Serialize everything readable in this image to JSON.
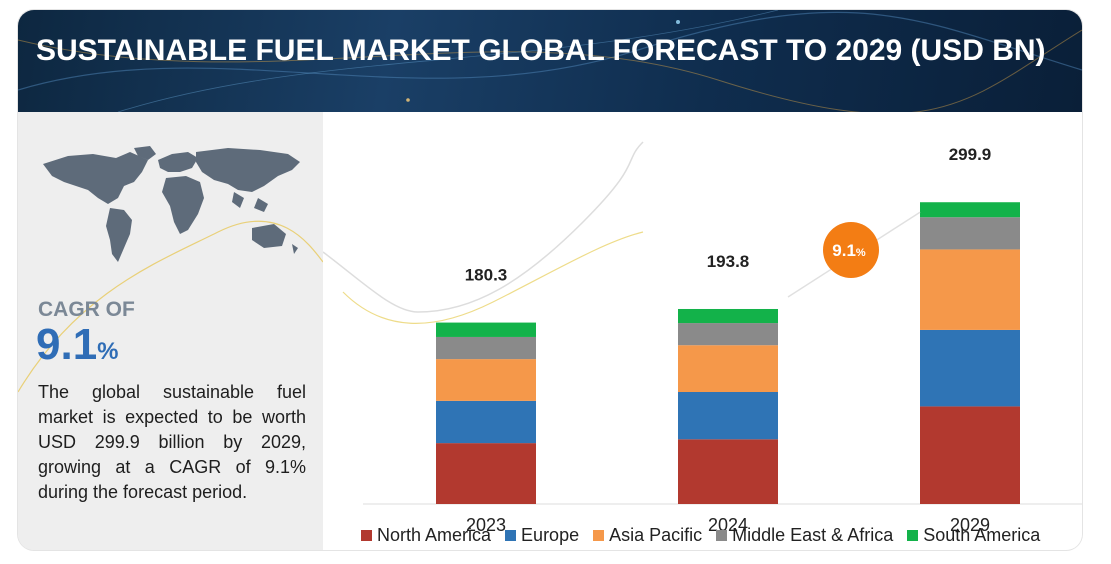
{
  "header": {
    "title": "SUSTAINABLE FUEL MARKET GLOBAL FORECAST TO 2029 (USD BN)"
  },
  "left_panel": {
    "cagr_label": "CAGR OF",
    "cagr_value": "9.1",
    "cagr_unit": "%",
    "description": "The global sustainable fuel market is expected to be worth USD 299.9 billion by 2029, growing at a CAGR of 9.1% during the forecast period."
  },
  "chart_data": {
    "type": "bar",
    "stacked": true,
    "categories": [
      "2023",
      "2024",
      "2029"
    ],
    "totals": [
      180.3,
      193.8,
      299.9
    ],
    "total_labels": [
      "180.3",
      "193.8",
      "299.9"
    ],
    "series": [
      {
        "name": "North America",
        "color": "#b2392f",
        "values": [
          60.5,
          64.3,
          97.0
        ]
      },
      {
        "name": "Europe",
        "color": "#2f74b5",
        "values": [
          42.0,
          47.0,
          76.0
        ]
      },
      {
        "name": "Asia Pacific",
        "color": "#f5984a",
        "values": [
          41.5,
          46.5,
          80.0
        ]
      },
      {
        "name": "Middle East & Africa",
        "color": "#8a8a8a",
        "values": [
          22.0,
          22.0,
          32.0
        ]
      },
      {
        "name": "South America",
        "color": "#13b24a",
        "values": [
          14.3,
          14.0,
          14.9
        ]
      }
    ],
    "annotation": {
      "value": "9.1",
      "unit": "%",
      "color": "#f37d14"
    },
    "ylim": [
      0,
      320
    ],
    "grid": false,
    "legend_position": "bottom"
  }
}
